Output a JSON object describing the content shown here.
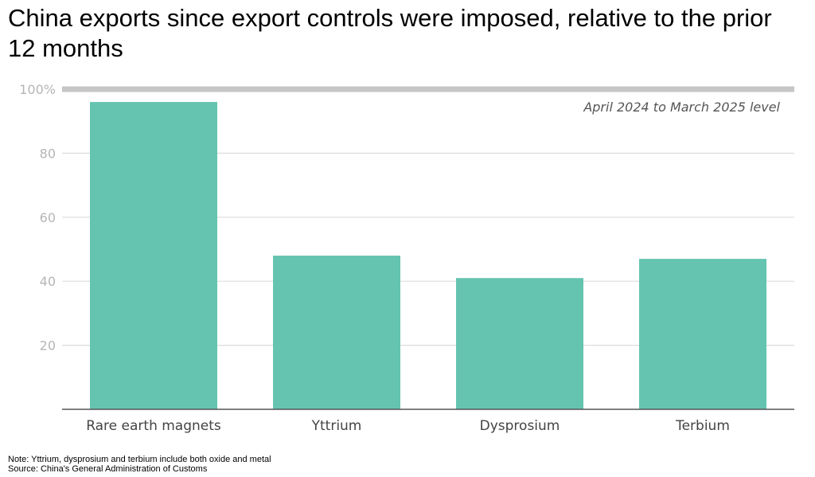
{
  "title": "China exports since export controls were imposed, relative to the prior 12 months",
  "note": "Note: Yttrium, dysprosium and terbium include both oxide and metal",
  "source": "Source: China's General Administration of Customs",
  "colors": {
    "bar": "#64c4b0",
    "grid": "#dcdcdc",
    "reference_line": "#c6c6c6",
    "axis": "#555555",
    "tick_text": "#b5b5b5",
    "label_text": "#444444"
  },
  "chart_data": {
    "type": "bar",
    "categories": [
      "Rare earth magnets",
      "Yttrium",
      "Dysprosium",
      "Terbium"
    ],
    "values": [
      96,
      48,
      41,
      47
    ],
    "ylim": [
      0,
      100
    ],
    "yticks": [
      20,
      40,
      60,
      80,
      100
    ],
    "ytick_labels": [
      "20",
      "40",
      "60",
      "80",
      "100%"
    ],
    "reference_line": {
      "value": 100,
      "label": "April 2024 to March 2025 level"
    },
    "grid": true,
    "xlabel": "",
    "ylabel": ""
  }
}
